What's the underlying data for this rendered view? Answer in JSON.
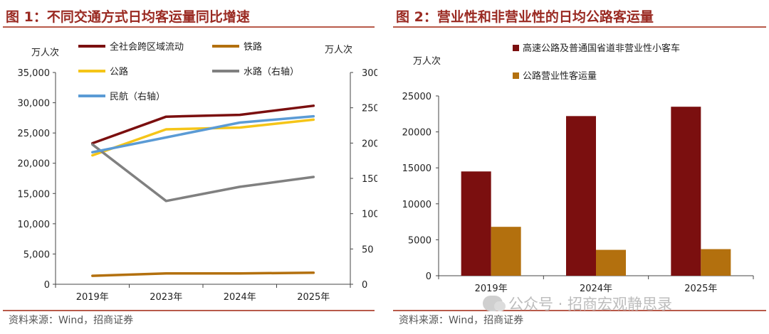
{
  "fig1": {
    "title": "图 1：不同交通方式日均客运量同比增速",
    "source": "资料来源：Wind，招商证券"
  },
  "fig2": {
    "title": "图 2：营业性和非营业性的日均公路客运量",
    "source": "资料来源：Wind，招商证券"
  },
  "watermark": "公众号 · 招商宏观静思录",
  "chart_data": [
    {
      "type": "line",
      "title": "图 1：不同交通方式日均客运量同比增速",
      "categories": [
        "2019年",
        "2023年",
        "2024年",
        "2025年"
      ],
      "left_unit": "万人次",
      "right_unit": "万人次",
      "left_ylim": [
        0,
        35000
      ],
      "left_ticks": [
        "0",
        "5,000",
        "10,000",
        "15,000",
        "20,000",
        "25,000",
        "30,000",
        "35,000"
      ],
      "right_ylim": [
        0,
        300
      ],
      "right_ticks": [
        "0",
        "50",
        "100",
        "150",
        "200",
        "250",
        "300"
      ],
      "series": [
        {
          "name": "全社会跨区域流动",
          "axis": "left",
          "color": "#7b0f0f",
          "values": [
            23300,
            27700,
            28000,
            29500
          ]
        },
        {
          "name": "铁路",
          "axis": "left",
          "color": "#b3700e",
          "values": [
            1400,
            1800,
            1800,
            1900
          ]
        },
        {
          "name": "公路",
          "axis": "left",
          "color": "#f5c518",
          "values": [
            21300,
            25600,
            25900,
            27200
          ]
        },
        {
          "name": "水路（右轴）",
          "axis": "right",
          "color": "#808080",
          "values": [
            198,
            118,
            138,
            152
          ]
        },
        {
          "name": "民航（右轴）",
          "axis": "right",
          "color": "#5b9bd5",
          "values": [
            187,
            208,
            229,
            238
          ]
        }
      ]
    },
    {
      "type": "bar",
      "title": "图 2：营业性和非营业性的日均公路客运量",
      "unit": "万人次",
      "categories": [
        "2019年",
        "2024年",
        "2025年"
      ],
      "ylim": [
        0,
        25000
      ],
      "ticks": [
        "0",
        "5000",
        "10000",
        "15000",
        "20000",
        "25000"
      ],
      "series": [
        {
          "name": "高速公路及普通国省道非营业性小客车",
          "color": "#7b0f0f",
          "values": [
            14500,
            22200,
            23500
          ]
        },
        {
          "name": "公路营业性客运量",
          "color": "#b3700e",
          "values": [
            6800,
            3600,
            3700
          ]
        }
      ]
    }
  ]
}
